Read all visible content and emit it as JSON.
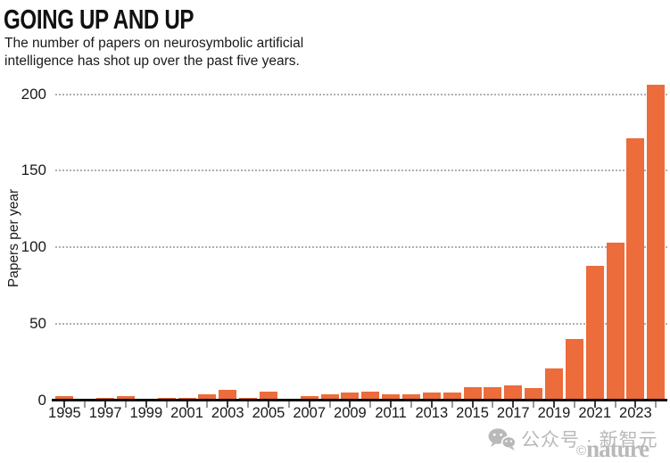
{
  "header": {
    "title": "GOING UP AND UP",
    "subtitle_line1": "The number of papers on neurosymbolic artificial",
    "subtitle_line2": "intelligence has shot up over the past five years."
  },
  "chart_data": {
    "type": "bar",
    "title": "GOING UP AND UP",
    "subtitle": "The number of papers on neurosymbolic artificial intelligence has shot up over the past five years.",
    "xlabel": "",
    "ylabel": "Papers per year",
    "ylim": [
      0,
      215
    ],
    "yticks": [
      0,
      50,
      100,
      150,
      200
    ],
    "grid": "horizontal dotted lines at 50, 100, 150, 200",
    "legend_position": "none",
    "bar_color": "#ec6c3b",
    "categories": [
      1995,
      1996,
      1997,
      1998,
      1999,
      2000,
      2001,
      2002,
      2003,
      2004,
      2005,
      2006,
      2007,
      2008,
      2009,
      2010,
      2011,
      2012,
      2013,
      2014,
      2015,
      2016,
      2017,
      2018,
      2019,
      2020,
      2021,
      2022,
      2023,
      2024
    ],
    "values": [
      3,
      1,
      2,
      3,
      1,
      2,
      2,
      4,
      7,
      2,
      6,
      1,
      3,
      4,
      5,
      6,
      4,
      4,
      5,
      5,
      9,
      9,
      10,
      8,
      21,
      40,
      88,
      103,
      171,
      206
    ],
    "x_tick_labels": [
      "1995",
      "1997",
      "1999",
      "2001",
      "2003",
      "2005",
      "2007",
      "2009",
      "2011",
      "2013",
      "2015",
      "2017",
      "2019",
      "2021",
      "2023"
    ]
  },
  "watermark": {
    "icon": "wechat-icon",
    "text": "公众号 · 新智元",
    "credit_symbol": "©",
    "credit": "nature"
  },
  "colors": {
    "bar": "#ec6c3b",
    "axis": "#0d0d0d",
    "grid": "#b0b0b0",
    "text": "#1a1a1a",
    "watermark": "#b9b9b9"
  }
}
